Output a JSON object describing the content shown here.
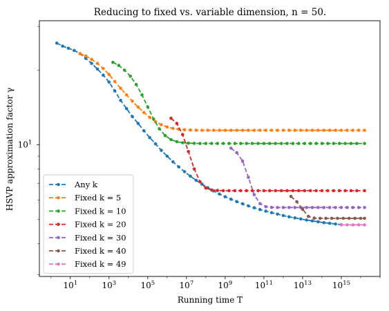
{
  "chart_data": {
    "type": "line",
    "title": "Reducing to fixed vs. variable dimension, n = 50.",
    "xlabel": "Running time T",
    "ylabel": "HSVP approximation factor γ",
    "xscale": "log",
    "yscale": "log",
    "xlim_log10": [
      -0.6,
      17.0
    ],
    "ylim_log10": [
      0.47,
      1.5
    ],
    "x_ticks": [
      {
        "exp": 1,
        "base": "10",
        "sup": "1"
      },
      {
        "exp": 3,
        "base": "10",
        "sup": "3"
      },
      {
        "exp": 5,
        "base": "10",
        "sup": "5"
      },
      {
        "exp": 7,
        "base": "10",
        "sup": "7"
      },
      {
        "exp": 9,
        "base": "10",
        "sup": "9"
      },
      {
        "exp": 11,
        "base": "10",
        "sup": "11"
      },
      {
        "exp": 13,
        "base": "10",
        "sup": "13"
      },
      {
        "exp": 15,
        "base": "10",
        "sup": "15"
      }
    ],
    "y_ticks": [
      {
        "value": 10,
        "base": "10",
        "sup": "1"
      }
    ],
    "grid": false,
    "legend_position": "lower-left",
    "series": [
      {
        "name": "Any k",
        "color": "#1f77b4",
        "x_log10": [
          0.3,
          0.6,
          0.9,
          1.2,
          1.5,
          1.8,
          2.1,
          2.4,
          2.7,
          3.0,
          3.3,
          3.6,
          3.9,
          4.2,
          4.5,
          4.8,
          5.1,
          5.4,
          5.7,
          6.0,
          6.3,
          6.6,
          6.9,
          7.2,
          7.5,
          7.8,
          8.1,
          8.4,
          8.7,
          9.0,
          9.3,
          9.6,
          9.9,
          10.2,
          10.5,
          10.8,
          11.1,
          11.4,
          11.7,
          12.0,
          12.3,
          12.6,
          12.9,
          13.2,
          13.5,
          13.8,
          14.1,
          14.4,
          14.7,
          15.0
        ],
        "y": [
          25.7,
          25.0,
          24.5,
          24.0,
          23.3,
          22.3,
          21.3,
          20.2,
          19.1,
          17.9,
          16.5,
          15.1,
          14.0,
          13.0,
          12.2,
          11.4,
          10.7,
          10.1,
          9.5,
          9.0,
          8.55,
          8.15,
          7.8,
          7.48,
          7.2,
          6.95,
          6.72,
          6.52,
          6.34,
          6.18,
          6.04,
          5.91,
          5.79,
          5.68,
          5.58,
          5.49,
          5.41,
          5.33,
          5.26,
          5.19,
          5.13,
          5.08,
          5.03,
          4.98,
          4.94,
          4.9,
          4.86,
          4.83,
          4.8,
          4.77
        ]
      },
      {
        "name": "Fixed k = 5",
        "color": "#ff7f0e",
        "x_log10": [
          1.5,
          1.8,
          2.1,
          2.4,
          2.7,
          3.0,
          3.3,
          3.6,
          3.9,
          4.2,
          4.5,
          4.8,
          5.1,
          5.4,
          5.7,
          6.0,
          6.3,
          6.6,
          6.9,
          7.2,
          7.5,
          7.8,
          8.1,
          8.4,
          8.7,
          9.0,
          9.3,
          9.6,
          9.9,
          10.2,
          10.5,
          10.8,
          11.1,
          11.4,
          11.7,
          12.0,
          12.3,
          12.6,
          12.9,
          13.2,
          13.5,
          13.8,
          14.1,
          14.4,
          14.7,
          15.0,
          15.3,
          15.6,
          15.9,
          16.2
        ],
        "y": [
          23.3,
          22.8,
          22.1,
          21.3,
          20.3,
          19.2,
          18.0,
          16.9,
          15.9,
          15.0,
          14.2,
          13.5,
          12.9,
          12.4,
          12.05,
          11.8,
          11.65,
          11.56,
          11.5,
          11.47,
          11.46,
          11.45,
          11.45,
          11.45,
          11.45,
          11.45,
          11.45,
          11.45,
          11.45,
          11.45,
          11.45,
          11.45,
          11.45,
          11.45,
          11.45,
          11.45,
          11.45,
          11.45,
          11.45,
          11.45,
          11.45,
          11.45,
          11.45,
          11.45,
          11.45,
          11.45,
          11.45,
          11.45,
          11.45,
          11.45
        ]
      },
      {
        "name": "Fixed k = 10",
        "color": "#2ca02c",
        "x_log10": [
          3.2,
          3.5,
          3.8,
          4.1,
          4.4,
          4.7,
          5.0,
          5.3,
          5.6,
          5.9,
          6.2,
          6.5,
          6.8,
          7.1,
          7.4,
          7.7,
          8.0,
          8.3,
          8.6,
          8.9,
          9.2,
          9.5,
          9.8,
          10.1,
          10.4,
          10.7,
          11.0,
          11.3,
          11.6,
          11.9,
          12.2,
          12.5,
          12.8,
          13.1,
          13.4,
          13.7,
          14.0,
          14.3,
          14.6,
          14.9,
          15.2,
          15.5,
          15.8,
          16.2
        ],
        "y": [
          21.5,
          20.9,
          20.0,
          18.9,
          17.5,
          15.9,
          14.2,
          12.7,
          11.6,
          10.9,
          10.5,
          10.3,
          10.2,
          10.16,
          10.14,
          10.13,
          10.13,
          10.13,
          10.13,
          10.13,
          10.13,
          10.13,
          10.13,
          10.13,
          10.13,
          10.13,
          10.13,
          10.13,
          10.13,
          10.13,
          10.13,
          10.13,
          10.13,
          10.13,
          10.13,
          10.13,
          10.13,
          10.13,
          10.13,
          10.13,
          10.13,
          10.13,
          10.13,
          10.13
        ]
      },
      {
        "name": "Fixed k = 20",
        "color": "#d62728",
        "x_log10": [
          6.2,
          6.5,
          6.8,
          7.1,
          7.4,
          7.7,
          8.0,
          8.3,
          8.6,
          8.9,
          9.2,
          9.5,
          9.8,
          10.1,
          10.4,
          10.7,
          11.0,
          11.3,
          11.6,
          11.9,
          12.2,
          12.5,
          12.8,
          13.1,
          13.4,
          13.7,
          14.0,
          14.3,
          14.6,
          14.9,
          15.2,
          15.5,
          15.8,
          16.2
        ],
        "y": [
          12.8,
          12.2,
          11.0,
          9.4,
          8.0,
          7.1,
          6.7,
          6.58,
          6.55,
          6.54,
          6.54,
          6.54,
          6.54,
          6.54,
          6.54,
          6.54,
          6.54,
          6.54,
          6.54,
          6.54,
          6.54,
          6.54,
          6.54,
          6.54,
          6.54,
          6.54,
          6.54,
          6.54,
          6.54,
          6.54,
          6.54,
          6.54,
          6.54,
          6.54
        ]
      },
      {
        "name": "Fixed k = 30",
        "color": "#9467bd",
        "x_log10": [
          9.3,
          9.6,
          9.9,
          10.2,
          10.5,
          10.8,
          11.1,
          11.4,
          11.7,
          12.0,
          12.3,
          12.6,
          12.9,
          13.2,
          13.5,
          13.8,
          14.1,
          14.4,
          14.7,
          15.0,
          15.3,
          15.6,
          15.9,
          16.2
        ],
        "y": [
          9.7,
          9.3,
          8.6,
          7.4,
          6.3,
          5.8,
          5.64,
          5.6,
          5.59,
          5.59,
          5.59,
          5.59,
          5.59,
          5.59,
          5.59,
          5.59,
          5.59,
          5.59,
          5.59,
          5.59,
          5.59,
          5.59,
          5.59,
          5.59
        ]
      },
      {
        "name": "Fixed k = 40",
        "color": "#8c564b",
        "x_log10": [
          12.4,
          12.7,
          13.0,
          13.3,
          13.6,
          13.9,
          14.2,
          14.5,
          14.8,
          15.1,
          15.4,
          15.7,
          16.0,
          16.2
        ],
        "y": [
          6.2,
          5.9,
          5.5,
          5.15,
          5.07,
          5.06,
          5.06,
          5.06,
          5.06,
          5.06,
          5.06,
          5.06,
          5.06,
          5.06
        ]
      },
      {
        "name": "Fixed k = 49",
        "color": "#e377c2",
        "x_log10": [
          15.0,
          15.3,
          15.6,
          15.9,
          16.2
        ],
        "y": [
          4.76,
          4.76,
          4.76,
          4.76,
          4.76
        ]
      }
    ]
  }
}
